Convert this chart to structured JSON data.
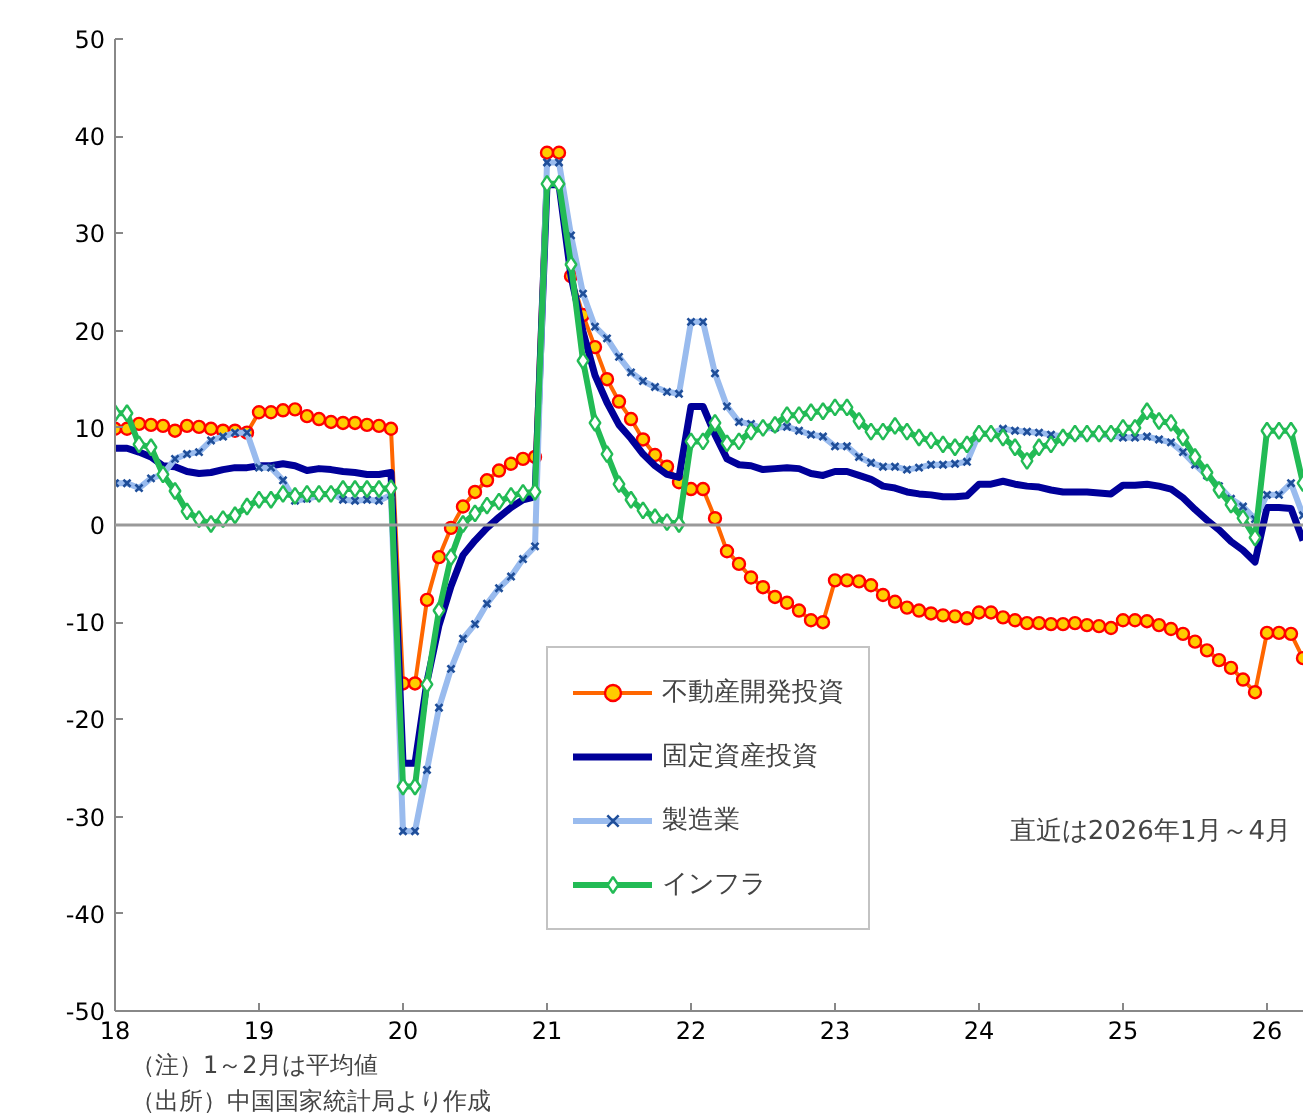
{
  "chart_data": {
    "type": "line",
    "x": [
      "2018-01",
      "2018-02",
      "2018-03",
      "2018-04",
      "2018-05",
      "2018-06",
      "2018-07",
      "2018-08",
      "2018-09",
      "2018-10",
      "2018-11",
      "2018-12",
      "2019-01",
      "2019-02",
      "2019-03",
      "2019-04",
      "2019-05",
      "2019-06",
      "2019-07",
      "2019-08",
      "2019-09",
      "2019-10",
      "2019-11",
      "2019-12",
      "2020-01",
      "2020-02",
      "2020-03",
      "2020-04",
      "2020-05",
      "2020-06",
      "2020-07",
      "2020-08",
      "2020-09",
      "2020-10",
      "2020-11",
      "2020-12",
      "2021-01",
      "2021-02",
      "2021-03",
      "2021-04",
      "2021-05",
      "2021-06",
      "2021-07",
      "2021-08",
      "2021-09",
      "2021-10",
      "2021-11",
      "2021-12",
      "2022-01",
      "2022-02",
      "2022-03",
      "2022-04",
      "2022-05",
      "2022-06",
      "2022-07",
      "2022-08",
      "2022-09",
      "2022-10",
      "2022-11",
      "2022-12",
      "2023-01",
      "2023-02",
      "2023-03",
      "2023-04",
      "2023-05",
      "2023-06",
      "2023-07",
      "2023-08",
      "2023-09",
      "2023-10",
      "2023-11",
      "2023-12",
      "2024-01",
      "2024-02",
      "2024-03",
      "2024-04",
      "2024-05",
      "2024-06",
      "2024-07",
      "2024-08",
      "2024-09",
      "2024-10",
      "2024-11",
      "2024-12",
      "2025-01",
      "2025-02",
      "2025-03",
      "2025-04",
      "2025-05",
      "2025-06",
      "2025-07",
      "2025-08",
      "2025-09",
      "2025-10",
      "2025-11",
      "2025-12",
      "2026-01",
      "2026-02",
      "2026-03",
      "2026-04"
    ],
    "series": [
      {
        "name": "不動産開発投資",
        "color": "#ff6600",
        "marker": "circle",
        "values": [
          9.9,
          9.9,
          10.4,
          10.3,
          10.2,
          9.7,
          10.2,
          10.1,
          9.9,
          9.7,
          9.7,
          9.5,
          11.6,
          11.6,
          11.8,
          11.9,
          11.2,
          10.9,
          10.6,
          10.5,
          10.5,
          10.3,
          10.2,
          9.9,
          -16.3,
          -16.3,
          -7.7,
          -3.3,
          -0.3,
          1.9,
          3.4,
          4.6,
          5.6,
          6.3,
          6.8,
          7.0,
          38.3,
          38.3,
          25.6,
          21.6,
          18.3,
          15.0,
          12.7,
          10.9,
          8.8,
          7.2,
          6.0,
          4.4,
          3.7,
          3.7,
          0.7,
          -2.7,
          -4.0,
          -5.4,
          -6.4,
          -7.4,
          -8.0,
          -8.8,
          -9.8,
          -10.0,
          -5.7,
          -5.7,
          -5.8,
          -6.2,
          -7.2,
          -7.9,
          -8.5,
          -8.8,
          -9.1,
          -9.3,
          -9.4,
          -9.6,
          -9.0,
          -9.0,
          -9.5,
          -9.8,
          -10.1,
          -10.1,
          -10.2,
          -10.2,
          -10.1,
          -10.3,
          -10.4,
          -10.6,
          -9.8,
          -9.8,
          -9.9,
          -10.3,
          -10.7,
          -11.2,
          -12.0,
          -12.9,
          -13.9,
          -14.7,
          -15.9,
          -17.2,
          -11.1,
          -11.1,
          -11.2,
          -13.7
        ]
      },
      {
        "name": "固定資産投資",
        "color": "#000099",
        "marker": "none",
        "values": [
          7.9,
          7.9,
          7.5,
          7.0,
          6.1,
          6.0,
          5.5,
          5.3,
          5.4,
          5.7,
          5.9,
          5.9,
          6.1,
          6.1,
          6.3,
          6.1,
          5.6,
          5.8,
          5.7,
          5.5,
          5.4,
          5.2,
          5.2,
          5.4,
          -24.5,
          -24.5,
          -16.1,
          -10.3,
          -6.3,
          -3.1,
          -1.6,
          -0.3,
          0.8,
          1.8,
          2.6,
          2.9,
          35.0,
          35.0,
          25.6,
          19.9,
          15.4,
          12.6,
          10.3,
          8.9,
          7.3,
          6.1,
          5.2,
          4.9,
          12.2,
          12.2,
          9.3,
          6.8,
          6.2,
          6.1,
          5.7,
          5.8,
          5.9,
          5.8,
          5.3,
          5.1,
          5.5,
          5.5,
          5.1,
          4.7,
          4.0,
          3.8,
          3.4,
          3.2,
          3.1,
          2.9,
          2.9,
          3.0,
          4.2,
          4.2,
          4.5,
          4.2,
          4.0,
          3.9,
          3.6,
          3.4,
          3.4,
          3.4,
          3.3,
          3.2,
          4.1,
          4.1,
          4.2,
          4.0,
          3.7,
          2.8,
          1.6,
          0.5,
          -0.5,
          -1.7,
          -2.6,
          -3.8,
          1.8,
          1.8,
          1.7,
          -1.6
        ]
      },
      {
        "name": "製造業",
        "color": "#99bbee",
        "marker": "cross",
        "values": [
          4.3,
          4.3,
          3.8,
          4.8,
          5.2,
          6.8,
          7.3,
          7.5,
          8.7,
          9.1,
          9.5,
          9.5,
          5.9,
          5.9,
          4.6,
          2.5,
          2.7,
          3.0,
          3.3,
          2.6,
          2.5,
          2.6,
          2.5,
          3.1,
          -31.5,
          -31.5,
          -25.2,
          -18.8,
          -14.8,
          -11.7,
          -10.2,
          -8.1,
          -6.5,
          -5.3,
          -3.5,
          -2.2,
          37.3,
          37.3,
          29.8,
          23.8,
          20.4,
          19.2,
          17.3,
          15.7,
          14.8,
          14.2,
          13.7,
          13.5,
          20.9,
          20.9,
          15.6,
          12.2,
          10.6,
          10.4,
          9.9,
          10.0,
          10.1,
          9.7,
          9.3,
          9.1,
          8.1,
          8.1,
          7.0,
          6.4,
          6.0,
          6.0,
          5.7,
          5.9,
          6.2,
          6.2,
          6.3,
          6.5,
          9.4,
          9.4,
          9.9,
          9.7,
          9.6,
          9.5,
          9.3,
          9.1,
          9.2,
          9.3,
          9.3,
          9.2,
          9.0,
          9.0,
          9.1,
          8.8,
          8.5,
          7.5,
          6.2,
          5.1,
          4.0,
          2.7,
          1.9,
          0.6,
          3.1,
          3.1,
          4.3,
          1.0
        ]
      },
      {
        "name": "インフラ",
        "color": "#22bb55",
        "marker": "diamond",
        "values": [
          11.5,
          11.5,
          8.3,
          8.0,
          5.2,
          3.5,
          1.4,
          0.6,
          0.1,
          0.6,
          1.0,
          1.9,
          2.6,
          2.6,
          3.2,
          3.0,
          3.2,
          3.2,
          3.2,
          3.7,
          3.7,
          3.7,
          3.7,
          3.8,
          -26.9,
          -26.9,
          -16.4,
          -8.8,
          -3.3,
          0.1,
          1.2,
          2.0,
          2.4,
          3.0,
          3.3,
          3.4,
          35.1,
          35.1,
          26.8,
          16.9,
          10.5,
          7.3,
          4.2,
          2.6,
          1.5,
          0.8,
          0.3,
          0.1,
          8.6,
          8.6,
          10.5,
          8.4,
          8.6,
          9.6,
          10.0,
          10.3,
          11.3,
          11.3,
          11.6,
          11.7,
          12.1,
          12.1,
          10.7,
          9.6,
          9.6,
          10.2,
          9.6,
          9.0,
          8.7,
          8.3,
          8.0,
          8.3,
          9.4,
          9.4,
          9.0,
          8.0,
          6.6,
          8.0,
          8.3,
          9.0,
          9.4,
          9.4,
          9.4,
          9.4,
          10.0,
          10.0,
          11.7,
          10.7,
          10.5,
          9.0,
          7.0,
          5.4,
          3.6,
          2.1,
          0.7,
          -1.3,
          9.7,
          9.7,
          9.7,
          4.3
        ]
      }
    ],
    "xlim": [
      "2018-01",
      "2026-04"
    ],
    "xticks": [
      {
        "value": "2018-01",
        "label": "18"
      },
      {
        "value": "2019-01",
        "label": "19"
      },
      {
        "value": "2020-01",
        "label": "20"
      },
      {
        "value": "2021-01",
        "label": "21"
      },
      {
        "value": "2022-01",
        "label": "22"
      },
      {
        "value": "2023-01",
        "label": "23"
      },
      {
        "value": "2024-01",
        "label": "24"
      },
      {
        "value": "2025-01",
        "label": "25"
      },
      {
        "value": "2026-01",
        "label": "26"
      }
    ],
    "ylim": [
      -50,
      50
    ],
    "yticks": [
      -50,
      -40,
      -30,
      -20,
      -10,
      0,
      10,
      20,
      30,
      40,
      50
    ],
    "ref_lines": [
      {
        "axis": "y",
        "value": 0,
        "color": "#999999"
      }
    ],
    "grid": false,
    "legend": "bottom",
    "annotations": [
      "直近は2026年1月～4月",
      "（注）1～2月は平均値",
      "（出所）中国国家統計局より作成"
    ]
  }
}
